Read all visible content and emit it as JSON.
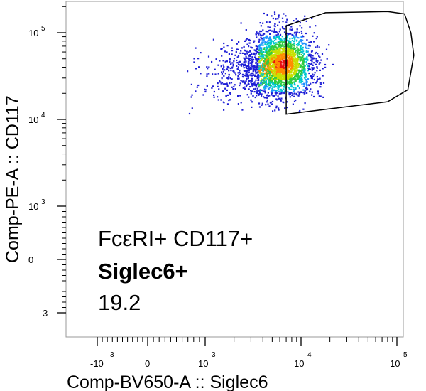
{
  "chart_data": {
    "type": "scatter",
    "subtype": "flow-cytometry-density-dot-plot",
    "xlabel": "Comp-BV650-A :: Siglec6",
    "ylabel": "Comp-PE-A :: CD117",
    "x_scale": "biexponential",
    "y_scale": "biexponential",
    "x_ticks": [
      {
        "value": -1000,
        "base": "-10",
        "exp": "3"
      },
      {
        "value": 0,
        "base": "0",
        "exp": ""
      },
      {
        "value": 1000,
        "base": "10",
        "exp": "3"
      },
      {
        "value": 10000,
        "base": "10",
        "exp": "4"
      },
      {
        "value": 100000,
        "base": "10",
        "exp": "5"
      }
    ],
    "y_ticks": [
      {
        "value": 100000,
        "base": "10",
        "exp": "5"
      },
      {
        "value": 10000,
        "base": "10",
        "exp": "4"
      },
      {
        "value": 1000,
        "base": "10",
        "exp": "3"
      },
      {
        "value": 0,
        "base": "0",
        "exp": ""
      },
      {
        "value": -1000,
        "base": "",
        "exp": "3"
      }
    ],
    "population_center": {
      "x": 6500,
      "y": 45000
    },
    "density_colors": [
      "#1f1fd6",
      "#1e90ff",
      "#00c8d0",
      "#2ecc40",
      "#c8e000",
      "#ff8c00",
      "#e81010"
    ],
    "gate": {
      "shape": "polygon",
      "vertices": [
        [
          7000,
          120000
        ],
        [
          18000,
          170000
        ],
        [
          80000,
          175000
        ],
        [
          120000,
          165000
        ],
        [
          140000,
          100000
        ],
        [
          150000,
          55000
        ],
        [
          130000,
          22000
        ],
        [
          80000,
          16000
        ],
        [
          7000,
          11500
        ]
      ]
    },
    "annotation": {
      "line1": "FcεRI+ CD117+",
      "line2": "Siglec6+",
      "line3": "19.2"
    },
    "grid": false,
    "legend": "none"
  }
}
